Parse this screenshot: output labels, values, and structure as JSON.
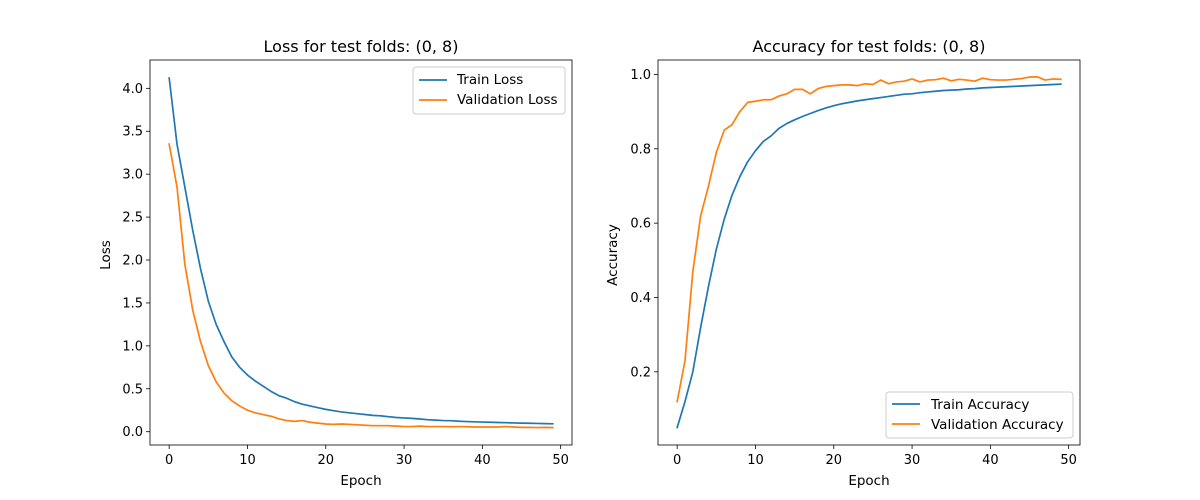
{
  "colors": {
    "train": "#1f77b4",
    "validation": "#ff7f0e"
  },
  "chart_data": [
    {
      "type": "line",
      "title": "Loss for test folds: (0, 8)",
      "xlabel": "Epoch",
      "ylabel": "Loss",
      "xlim": [
        -2.45,
        51.45
      ],
      "ylim": [
        -0.155,
        4.33
      ],
      "xticks": [
        0,
        10,
        20,
        30,
        40,
        50
      ],
      "yticks": [
        0.0,
        0.5,
        1.0,
        1.5,
        2.0,
        2.5,
        3.0,
        3.5,
        4.0
      ],
      "ytick_labels": [
        "0.0",
        "0.5",
        "1.0",
        "1.5",
        "2.0",
        "2.5",
        "3.0",
        "3.5",
        "4.0"
      ],
      "legend_position": "upper right",
      "series": [
        {
          "name": "Train Loss",
          "color_key": "train",
          "x": [
            0,
            1,
            2,
            3,
            4,
            5,
            6,
            7,
            8,
            9,
            10,
            11,
            12,
            13,
            14,
            15,
            16,
            17,
            18,
            19,
            20,
            21,
            22,
            23,
            24,
            25,
            26,
            27,
            28,
            29,
            30,
            31,
            32,
            33,
            34,
            35,
            36,
            37,
            38,
            39,
            40,
            41,
            42,
            43,
            44,
            45,
            46,
            47,
            48,
            49
          ],
          "y": [
            4.12,
            3.35,
            2.85,
            2.35,
            1.9,
            1.52,
            1.25,
            1.05,
            0.87,
            0.75,
            0.66,
            0.59,
            0.53,
            0.47,
            0.42,
            0.39,
            0.35,
            0.32,
            0.3,
            0.28,
            0.26,
            0.245,
            0.23,
            0.22,
            0.21,
            0.2,
            0.19,
            0.185,
            0.175,
            0.165,
            0.16,
            0.155,
            0.148,
            0.14,
            0.135,
            0.13,
            0.128,
            0.122,
            0.118,
            0.115,
            0.112,
            0.11,
            0.107,
            0.105,
            0.102,
            0.1,
            0.098,
            0.096,
            0.094,
            0.092
          ]
        },
        {
          "name": "Validation Loss",
          "color_key": "validation",
          "x": [
            0,
            1,
            2,
            3,
            4,
            5,
            6,
            7,
            8,
            9,
            10,
            11,
            12,
            13,
            14,
            15,
            16,
            17,
            18,
            19,
            20,
            21,
            22,
            23,
            24,
            25,
            26,
            27,
            28,
            29,
            30,
            31,
            32,
            33,
            34,
            35,
            36,
            37,
            38,
            39,
            40,
            41,
            42,
            43,
            44,
            45,
            46,
            47,
            48,
            49
          ],
          "y": [
            3.35,
            2.85,
            1.95,
            1.42,
            1.05,
            0.77,
            0.58,
            0.45,
            0.36,
            0.3,
            0.25,
            0.22,
            0.2,
            0.18,
            0.15,
            0.13,
            0.12,
            0.13,
            0.11,
            0.1,
            0.09,
            0.085,
            0.09,
            0.085,
            0.08,
            0.075,
            0.07,
            0.07,
            0.07,
            0.065,
            0.06,
            0.06,
            0.065,
            0.06,
            0.06,
            0.06,
            0.058,
            0.06,
            0.058,
            0.055,
            0.055,
            0.055,
            0.055,
            0.06,
            0.055,
            0.05,
            0.05,
            0.048,
            0.05,
            0.048
          ]
        }
      ]
    },
    {
      "type": "line",
      "title": "Accuracy for test folds: (0, 8)",
      "xlabel": "Epoch",
      "ylabel": "Accuracy",
      "xlim": [
        -2.45,
        51.45
      ],
      "ylim": [
        0.003,
        1.039
      ],
      "xticks": [
        0,
        10,
        20,
        30,
        40,
        50
      ],
      "yticks": [
        0.2,
        0.4,
        0.6,
        0.8,
        1.0
      ],
      "ytick_labels": [
        "0.2",
        "0.4",
        "0.6",
        "0.8",
        "1.0"
      ],
      "legend_position": "lower right",
      "series": [
        {
          "name": "Train Accuracy",
          "color_key": "train",
          "x": [
            0,
            1,
            2,
            3,
            4,
            5,
            6,
            7,
            8,
            9,
            10,
            11,
            12,
            13,
            14,
            15,
            16,
            17,
            18,
            19,
            20,
            21,
            22,
            23,
            24,
            25,
            26,
            27,
            28,
            29,
            30,
            31,
            32,
            33,
            34,
            35,
            36,
            37,
            38,
            39,
            40,
            41,
            42,
            43,
            44,
            45,
            46,
            47,
            48,
            49
          ],
          "y": [
            0.05,
            0.12,
            0.2,
            0.32,
            0.43,
            0.53,
            0.61,
            0.675,
            0.725,
            0.765,
            0.795,
            0.82,
            0.835,
            0.855,
            0.868,
            0.878,
            0.887,
            0.895,
            0.903,
            0.91,
            0.916,
            0.921,
            0.925,
            0.929,
            0.932,
            0.935,
            0.938,
            0.941,
            0.944,
            0.947,
            0.948,
            0.951,
            0.953,
            0.955,
            0.957,
            0.958,
            0.959,
            0.961,
            0.962,
            0.964,
            0.965,
            0.966,
            0.967,
            0.968,
            0.969,
            0.97,
            0.971,
            0.972,
            0.973,
            0.974
          ]
        },
        {
          "name": "Validation Accuracy",
          "color_key": "validation",
          "x": [
            0,
            1,
            2,
            3,
            4,
            5,
            6,
            7,
            8,
            9,
            10,
            11,
            12,
            13,
            14,
            15,
            16,
            17,
            18,
            19,
            20,
            21,
            22,
            23,
            24,
            25,
            26,
            27,
            28,
            29,
            30,
            31,
            32,
            33,
            34,
            35,
            36,
            37,
            38,
            39,
            40,
            41,
            42,
            43,
            44,
            45,
            46,
            47,
            48,
            49
          ],
          "y": [
            0.12,
            0.23,
            0.47,
            0.62,
            0.7,
            0.79,
            0.85,
            0.865,
            0.9,
            0.925,
            0.928,
            0.932,
            0.932,
            0.942,
            0.948,
            0.96,
            0.96,
            0.948,
            0.962,
            0.968,
            0.97,
            0.972,
            0.972,
            0.97,
            0.975,
            0.973,
            0.985,
            0.975,
            0.98,
            0.982,
            0.988,
            0.98,
            0.985,
            0.986,
            0.99,
            0.983,
            0.987,
            0.985,
            0.982,
            0.99,
            0.986,
            0.985,
            0.985,
            0.987,
            0.989,
            0.993,
            0.994,
            0.985,
            0.988,
            0.987
          ]
        }
      ]
    }
  ]
}
